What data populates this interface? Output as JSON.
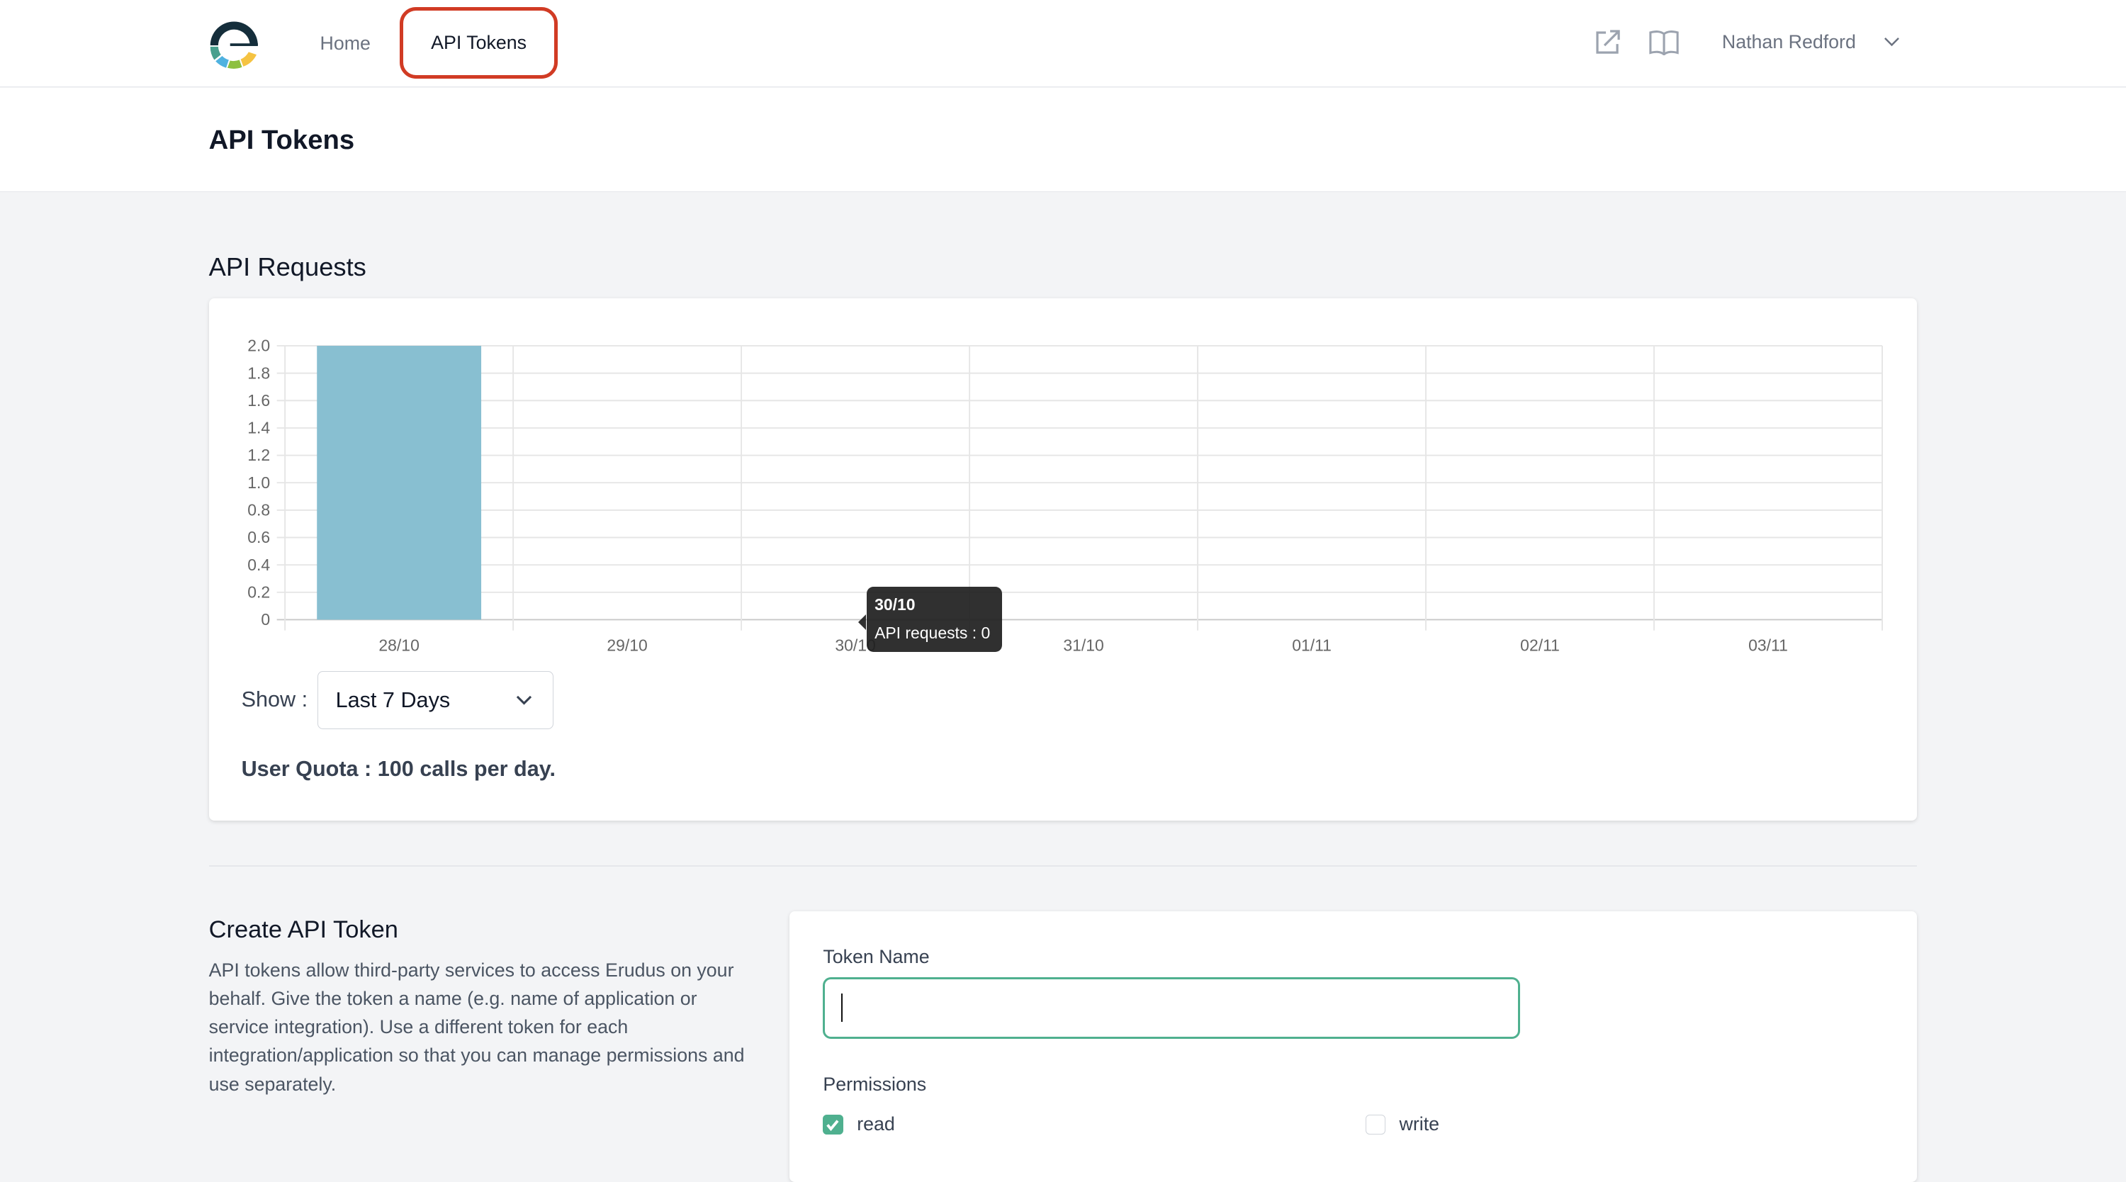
{
  "header": {
    "nav": [
      {
        "label": "Home"
      },
      {
        "label": "API Tokens",
        "active": true
      }
    ],
    "icons": [
      "external-link-icon",
      "book-icon"
    ],
    "user_name": "Nathan Redford",
    "highlight_color": "#d13b24"
  },
  "page_title": "API Tokens",
  "requests": {
    "heading": "API Requests",
    "show_label": "Show :",
    "range_value": "Last 7 Days",
    "quota": "User Quota : 100 calls per day.",
    "tooltip": {
      "title": "30/10",
      "text": "API requests : 0"
    }
  },
  "chart_data": {
    "type": "bar",
    "categories": [
      "28/10",
      "29/10",
      "30/10",
      "31/10",
      "01/11",
      "02/11",
      "03/11"
    ],
    "series": [
      {
        "name": "API requests",
        "values": [
          2,
          0,
          0,
          0,
          0,
          0,
          0
        ],
        "color": "#88bfd1"
      }
    ],
    "ylim": [
      0,
      2
    ],
    "yticks": [
      "0",
      "0.2",
      "0.4",
      "0.6",
      "0.8",
      "1.0",
      "1.2",
      "1.4",
      "1.6",
      "1.8",
      "2.0"
    ],
    "grid": true
  },
  "create": {
    "heading": "Create API Token",
    "description": "API tokens allow third-party services to access Erudus on your behalf. Give the token a name (e.g. name of application or service integration). Use a different token for each integration/application so that you can manage permissions and use separately.",
    "token_name_label": "Token Name",
    "token_name_value": "",
    "permissions_label": "Permissions",
    "permissions": [
      {
        "label": "read",
        "checked": true
      },
      {
        "label": "write",
        "checked": false
      }
    ],
    "accent": "#4fb08f"
  }
}
